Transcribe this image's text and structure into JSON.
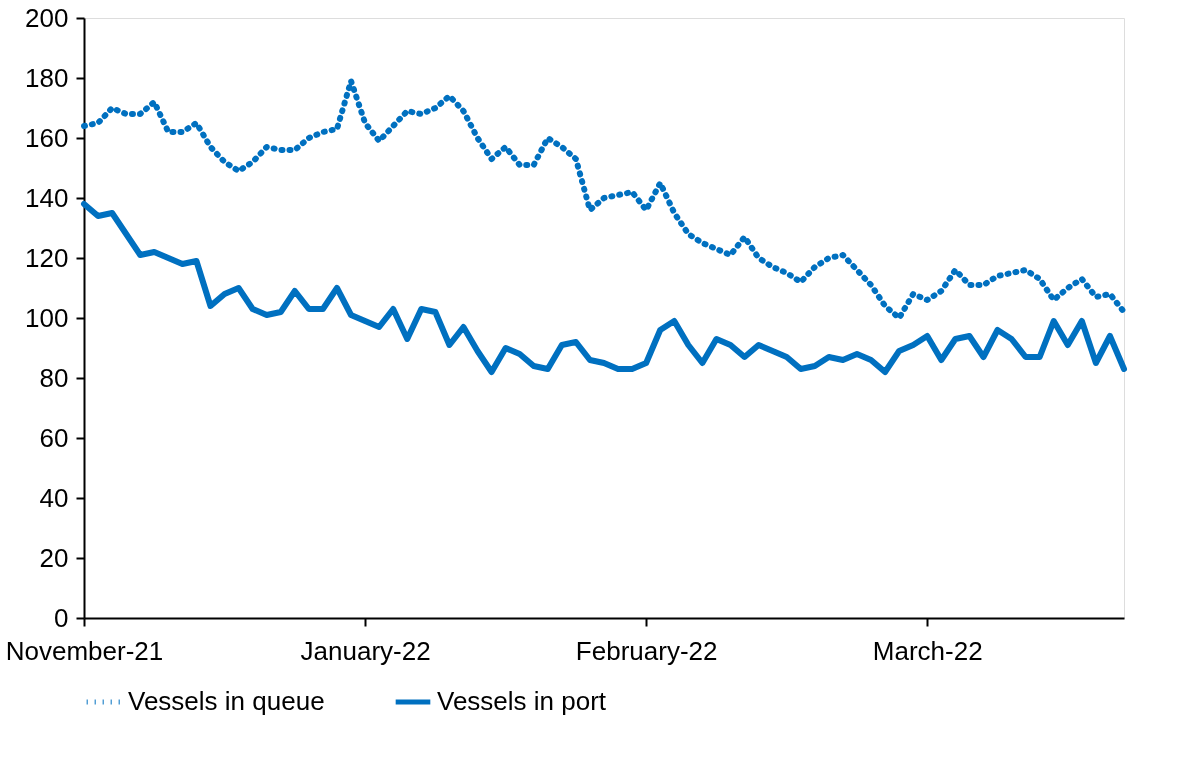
{
  "chart_data": {
    "type": "line",
    "legend": "bottom",
    "grid": false,
    "marker": "none",
    "categories": [
      "November-21",
      null,
      null,
      null,
      null,
      null,
      null,
      null,
      null,
      null,
      null,
      null,
      null,
      null,
      null,
      null,
      null,
      null,
      null,
      null,
      "January-22",
      null,
      null,
      null,
      null,
      null,
      null,
      null,
      null,
      null,
      null,
      null,
      null,
      null,
      null,
      null,
      null,
      null,
      null,
      null,
      "February-22",
      null,
      null,
      null,
      null,
      null,
      null,
      null,
      null,
      null,
      null,
      null,
      null,
      null,
      null,
      null,
      null,
      null,
      null,
      null,
      "March-22",
      null,
      null,
      null,
      null,
      null,
      null,
      null,
      null,
      null,
      null,
      null,
      null,
      null,
      null
    ],
    "ylim": [
      0,
      200
    ],
    "yticks": [
      0,
      20,
      40,
      60,
      80,
      100,
      120,
      140,
      160,
      180,
      200
    ],
    "series": [
      {
        "name": "Vessels in queue",
        "color": "#0070c0",
        "line_style": "dotted",
        "values": [
          164,
          165,
          170,
          168,
          168,
          172,
          162,
          162,
          165,
          157,
          152,
          149,
          152,
          157,
          156,
          156,
          160,
          162,
          163,
          179,
          165,
          159,
          164,
          169,
          168,
          170,
          174,
          169,
          160,
          153,
          157,
          151,
          151,
          160,
          157,
          153,
          136,
          140,
          141,
          142,
          136,
          145,
          135,
          128,
          125,
          123,
          121,
          127,
          120,
          117,
          115,
          112,
          117,
          120,
          121,
          116,
          111,
          104,
          100,
          108,
          106,
          109,
          116,
          111,
          111,
          114,
          115,
          116,
          113,
          106,
          110,
          113,
          107,
          108,
          102
        ]
      },
      {
        "name": "Vessels in port",
        "color": "#0070c0",
        "line_style": "solid",
        "values": [
          138,
          134,
          135,
          128,
          121,
          122,
          120,
          118,
          119,
          104,
          108,
          110,
          103,
          101,
          102,
          109,
          103,
          103,
          110,
          101,
          99,
          97,
          103,
          93,
          103,
          102,
          91,
          97,
          89,
          82,
          90,
          88,
          84,
          83,
          91,
          92,
          86,
          85,
          83,
          83,
          85,
          96,
          99,
          91,
          85,
          93,
          91,
          87,
          91,
          89,
          87,
          83,
          84,
          87,
          86,
          88,
          86,
          82,
          89,
          91,
          94,
          86,
          93,
          94,
          87,
          96,
          93,
          87,
          87,
          99,
          91,
          99,
          85,
          94,
          83
        ]
      }
    ]
  }
}
